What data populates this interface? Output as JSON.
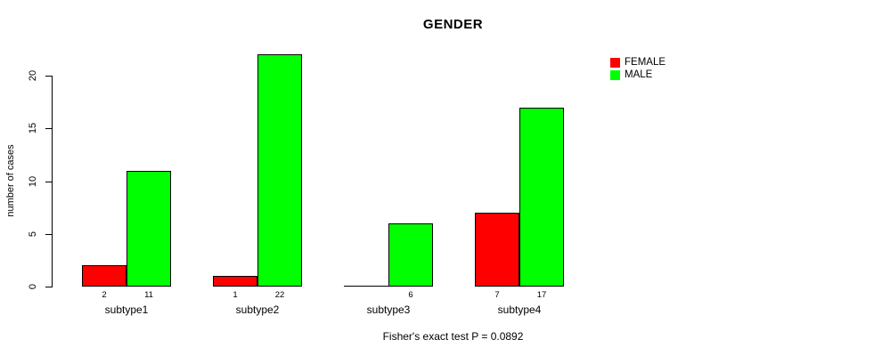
{
  "chart_data": {
    "type": "bar",
    "title": "GENDER",
    "xlabel": "",
    "ylabel": "number of cases",
    "categories": [
      "subtype1",
      "subtype2",
      "subtype3",
      "subtype4"
    ],
    "series": [
      {
        "name": "FEMALE",
        "color": "#ff0000",
        "values": [
          2,
          1,
          0,
          7
        ]
      },
      {
        "name": "MALE",
        "color": "#00ff00",
        "values": [
          11,
          22,
          6,
          17
        ]
      }
    ],
    "bar_value_labels": [
      [
        "2",
        "11"
      ],
      [
        "1",
        "22"
      ],
      [
        "",
        "6"
      ],
      [
        "7",
        "17"
      ]
    ],
    "yticks": [
      0,
      5,
      10,
      15,
      20
    ],
    "ylim": [
      0,
      22.3
    ],
    "grid": false,
    "legend": {
      "position": "top-right",
      "entries": [
        {
          "label": "FEMALE",
          "color": "#ff0000"
        },
        {
          "label": "MALE",
          "color": "#00ff00"
        }
      ]
    },
    "annotation": "Fisher's exact test P = 0.0892",
    "bar_border_color": "#000000",
    "axis_color": "#000000",
    "background": "#ffffff"
  }
}
